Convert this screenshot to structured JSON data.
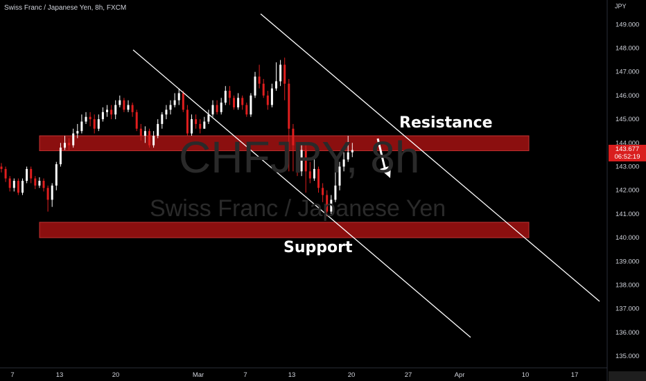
{
  "header": {
    "title": "Swiss Franc / Japanese Yen, 8h, FXCM"
  },
  "watermark": {
    "symbol": "CHFJPY, 8h",
    "name": "Swiss Franc / Japanese Yen"
  },
  "annotations": {
    "resistance": "Resistance",
    "support": "Support"
  },
  "price_tag": {
    "price": "143.677",
    "countdown": "06:52:19"
  },
  "colors": {
    "up": "#ffffff",
    "down": "#e01e1e",
    "zone_fill": "#8b0f0f",
    "zone_border": "#c23232",
    "background": "#000000",
    "trendline": "#ffffff"
  },
  "chart_data": {
    "type": "candlestick",
    "title": "Swiss Franc / Japanese Yen, 8h, FXCM",
    "currency": "JPY",
    "y_ticks": [
      "135.000",
      "136.000",
      "137.000",
      "138.000",
      "139.000",
      "140.000",
      "141.000",
      "142.000",
      "143.000",
      "144.000",
      "145.000",
      "146.000",
      "147.000",
      "148.000",
      "149.000"
    ],
    "x_ticks": [
      "7",
      "13",
      "20",
      "Mar",
      "7",
      "13",
      "20",
      "27",
      "Apr",
      "10",
      "17"
    ],
    "ylim": [
      134.9,
      149.6
    ],
    "grid": false,
    "zones": [
      {
        "label": "Resistance",
        "low": 143.67,
        "high": 144.3
      },
      {
        "label": "Support",
        "low": 140.0,
        "high": 140.65
      }
    ],
    "trendlines": [
      {
        "from": [
          "Feb 17",
          148.0
        ],
        "to": [
          "Apr 1",
          135.8
        ]
      },
      {
        "from": [
          "Mar 3",
          149.8
        ],
        "to": [
          "Apr 21",
          137.3
        ]
      }
    ],
    "last_price": 143.677,
    "candles": [
      [
        143.0,
        142.9,
        143.15,
        142.75
      ],
      [
        142.9,
        142.5,
        143.0,
        142.35
      ],
      [
        142.5,
        142.1,
        142.6,
        141.95
      ],
      [
        142.1,
        142.4,
        142.5,
        141.95
      ],
      [
        142.4,
        141.9,
        142.5,
        141.8
      ],
      [
        141.9,
        142.4,
        142.5,
        141.8
      ],
      [
        142.4,
        142.9,
        143.0,
        142.3
      ],
      [
        142.9,
        142.5,
        143.0,
        142.3
      ],
      [
        142.5,
        142.2,
        142.6,
        142.05
      ],
      [
        142.2,
        142.4,
        142.55,
        142.1
      ],
      [
        142.4,
        142.1,
        142.5,
        141.95
      ],
      [
        142.1,
        141.6,
        142.2,
        141.1
      ],
      [
        141.6,
        142.2,
        142.3,
        141.3
      ],
      [
        142.2,
        143.1,
        143.2,
        142.0
      ],
      [
        143.1,
        143.8,
        144.0,
        143.0
      ],
      [
        143.8,
        144.0,
        144.3,
        143.7
      ],
      [
        144.0,
        143.9,
        144.2,
        143.7
      ],
      [
        143.9,
        144.4,
        144.6,
        143.8
      ],
      [
        144.4,
        144.5,
        144.8,
        144.2
      ],
      [
        144.5,
        144.9,
        145.2,
        144.4
      ],
      [
        144.9,
        145.1,
        145.3,
        144.8
      ],
      [
        145.1,
        145.0,
        145.3,
        144.7
      ],
      [
        145.0,
        144.6,
        145.2,
        144.4
      ],
      [
        144.6,
        145.0,
        145.2,
        144.5
      ],
      [
        145.0,
        145.3,
        145.5,
        144.9
      ],
      [
        145.3,
        145.4,
        145.6,
        145.1
      ],
      [
        145.4,
        145.2,
        145.6,
        145.0
      ],
      [
        145.2,
        145.6,
        145.8,
        145.0
      ],
      [
        145.6,
        145.8,
        146.0,
        145.5
      ],
      [
        145.8,
        145.4,
        145.9,
        145.3
      ],
      [
        145.4,
        145.6,
        145.8,
        145.3
      ],
      [
        145.6,
        145.3,
        145.7,
        145.1
      ],
      [
        145.3,
        144.6,
        145.4,
        144.5
      ],
      [
        144.6,
        144.3,
        144.8,
        144.1
      ],
      [
        144.3,
        144.5,
        144.7,
        144.0
      ],
      [
        144.5,
        143.9,
        144.6,
        143.8
      ],
      [
        143.9,
        144.3,
        144.5,
        143.8
      ],
      [
        144.3,
        144.8,
        145.0,
        144.2
      ],
      [
        144.8,
        145.2,
        145.3,
        144.6
      ],
      [
        145.2,
        145.4,
        145.6,
        145.0
      ],
      [
        145.4,
        145.6,
        145.8,
        145.2
      ],
      [
        145.6,
        145.8,
        146.1,
        145.5
      ],
      [
        145.8,
        146.1,
        146.3,
        145.6
      ],
      [
        146.1,
        145.4,
        146.2,
        145.3
      ],
      [
        145.4,
        144.4,
        145.6,
        144.3
      ],
      [
        144.4,
        145.0,
        145.2,
        144.3
      ],
      [
        145.0,
        144.8,
        145.2,
        144.6
      ],
      [
        144.8,
        144.6,
        145.0,
        144.4
      ],
      [
        144.6,
        144.9,
        145.1,
        144.6
      ],
      [
        144.9,
        145.2,
        145.4,
        144.8
      ],
      [
        145.2,
        145.6,
        145.8,
        145.1
      ],
      [
        145.6,
        145.3,
        145.8,
        145.2
      ],
      [
        145.3,
        145.7,
        145.9,
        145.2
      ],
      [
        145.7,
        146.2,
        146.4,
        145.6
      ],
      [
        146.2,
        145.9,
        146.4,
        145.6
      ],
      [
        145.9,
        145.5,
        146.0,
        145.4
      ],
      [
        145.5,
        145.9,
        146.1,
        145.4
      ],
      [
        145.9,
        145.6,
        146.0,
        145.4
      ],
      [
        145.6,
        145.2,
        145.7,
        145.1
      ],
      [
        145.2,
        146.0,
        146.1,
        145.1
      ],
      [
        146.0,
        146.8,
        147.0,
        145.9
      ],
      [
        146.8,
        146.5,
        147.3,
        146.3
      ],
      [
        146.5,
        146.0,
        146.7,
        145.9
      ],
      [
        146.0,
        145.6,
        146.2,
        145.4
      ],
      [
        145.6,
        146.3,
        146.5,
        145.5
      ],
      [
        146.3,
        146.6,
        147.4,
        146.2
      ],
      [
        146.6,
        147.3,
        147.5,
        146.4
      ],
      [
        147.3,
        146.5,
        147.6,
        145.8
      ],
      [
        146.5,
        144.6,
        146.7,
        142.8
      ],
      [
        144.6,
        143.9,
        144.8,
        142.8
      ],
      [
        143.9,
        142.8,
        144.0,
        142.6
      ],
      [
        142.8,
        143.7,
        144.0,
        142.6
      ],
      [
        143.7,
        142.8,
        143.9,
        141.9
      ],
      [
        142.8,
        142.5,
        143.2,
        142.3
      ],
      [
        142.5,
        142.9,
        143.4,
        142.4
      ],
      [
        142.9,
        142.1,
        143.0,
        141.9
      ],
      [
        142.1,
        141.8,
        142.3,
        141.5
      ],
      [
        141.8,
        141.1,
        142.0,
        140.9
      ],
      [
        141.1,
        141.6,
        141.8,
        141.0
      ],
      [
        141.6,
        142.2,
        143.0,
        141.5
      ],
      [
        142.2,
        143.0,
        143.2,
        142.0
      ],
      [
        143.0,
        143.3,
        143.6,
        142.8
      ],
      [
        143.3,
        143.6,
        144.3,
        143.2
      ],
      [
        143.6,
        143.7,
        144.0,
        143.4
      ]
    ]
  }
}
